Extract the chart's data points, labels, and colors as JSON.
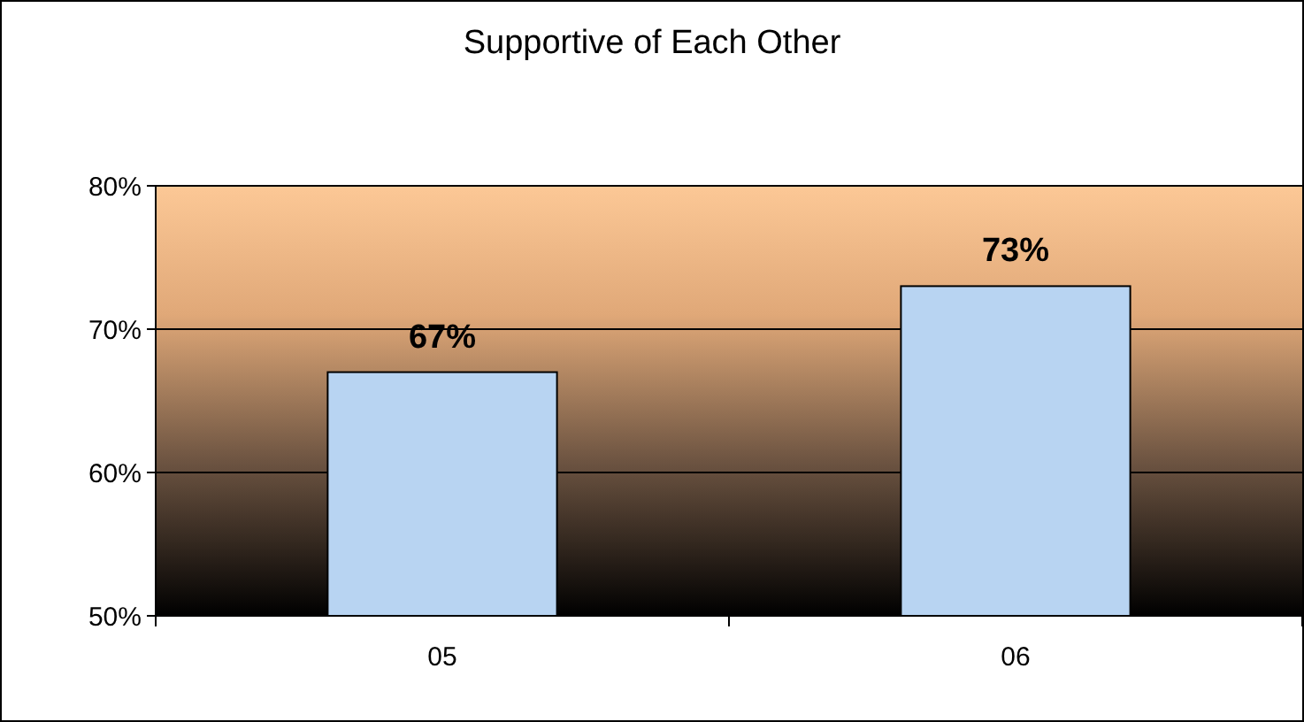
{
  "chart_data": {
    "type": "bar",
    "title": "Supportive of Each Other",
    "categories": [
      "05",
      "06"
    ],
    "values": [
      67,
      73
    ],
    "color": "#b8d4f2",
    "ylim": [
      50,
      80
    ],
    "yticks": [
      {
        "value": 50,
        "label": "50%"
      },
      {
        "value": 60,
        "label": "60%"
      },
      {
        "value": 70,
        "label": "70%"
      },
      {
        "value": 80,
        "label": "80%"
      }
    ],
    "grid": "y",
    "value_labels": [
      "67%",
      "73%"
    ]
  }
}
